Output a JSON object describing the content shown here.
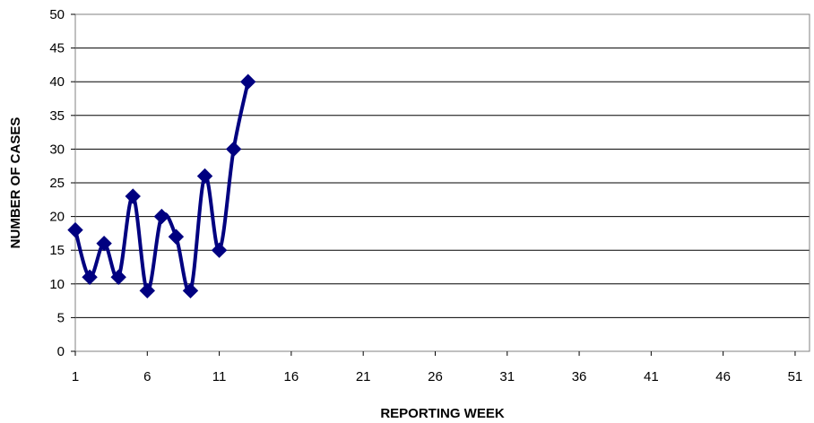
{
  "chart_data": {
    "type": "line",
    "title": "",
    "xlabel": "REPORTING WEEK",
    "ylabel": "NUMBER OF CASES",
    "xlim": [
      1,
      52
    ],
    "ylim": [
      0,
      50
    ],
    "x_ticks": [
      1,
      6,
      11,
      16,
      21,
      26,
      31,
      36,
      41,
      46,
      51
    ],
    "y_ticks": [
      0,
      5,
      10,
      15,
      20,
      25,
      30,
      35,
      40,
      45,
      50
    ],
    "grid": "horizontal",
    "legend": "none",
    "series": [
      {
        "x": [
          1,
          2,
          3,
          4,
          5,
          6,
          7,
          8,
          9,
          10,
          11,
          12,
          13
        ],
        "values": [
          18,
          11,
          16,
          11,
          23,
          9,
          20,
          17,
          9,
          26,
          15,
          30,
          40
        ],
        "color": "#000080",
        "marker": "diamond",
        "smooth": true
      }
    ],
    "colors": {
      "plot_background": "#ffffff",
      "gridline": "#000000",
      "axis": "#808080"
    }
  }
}
